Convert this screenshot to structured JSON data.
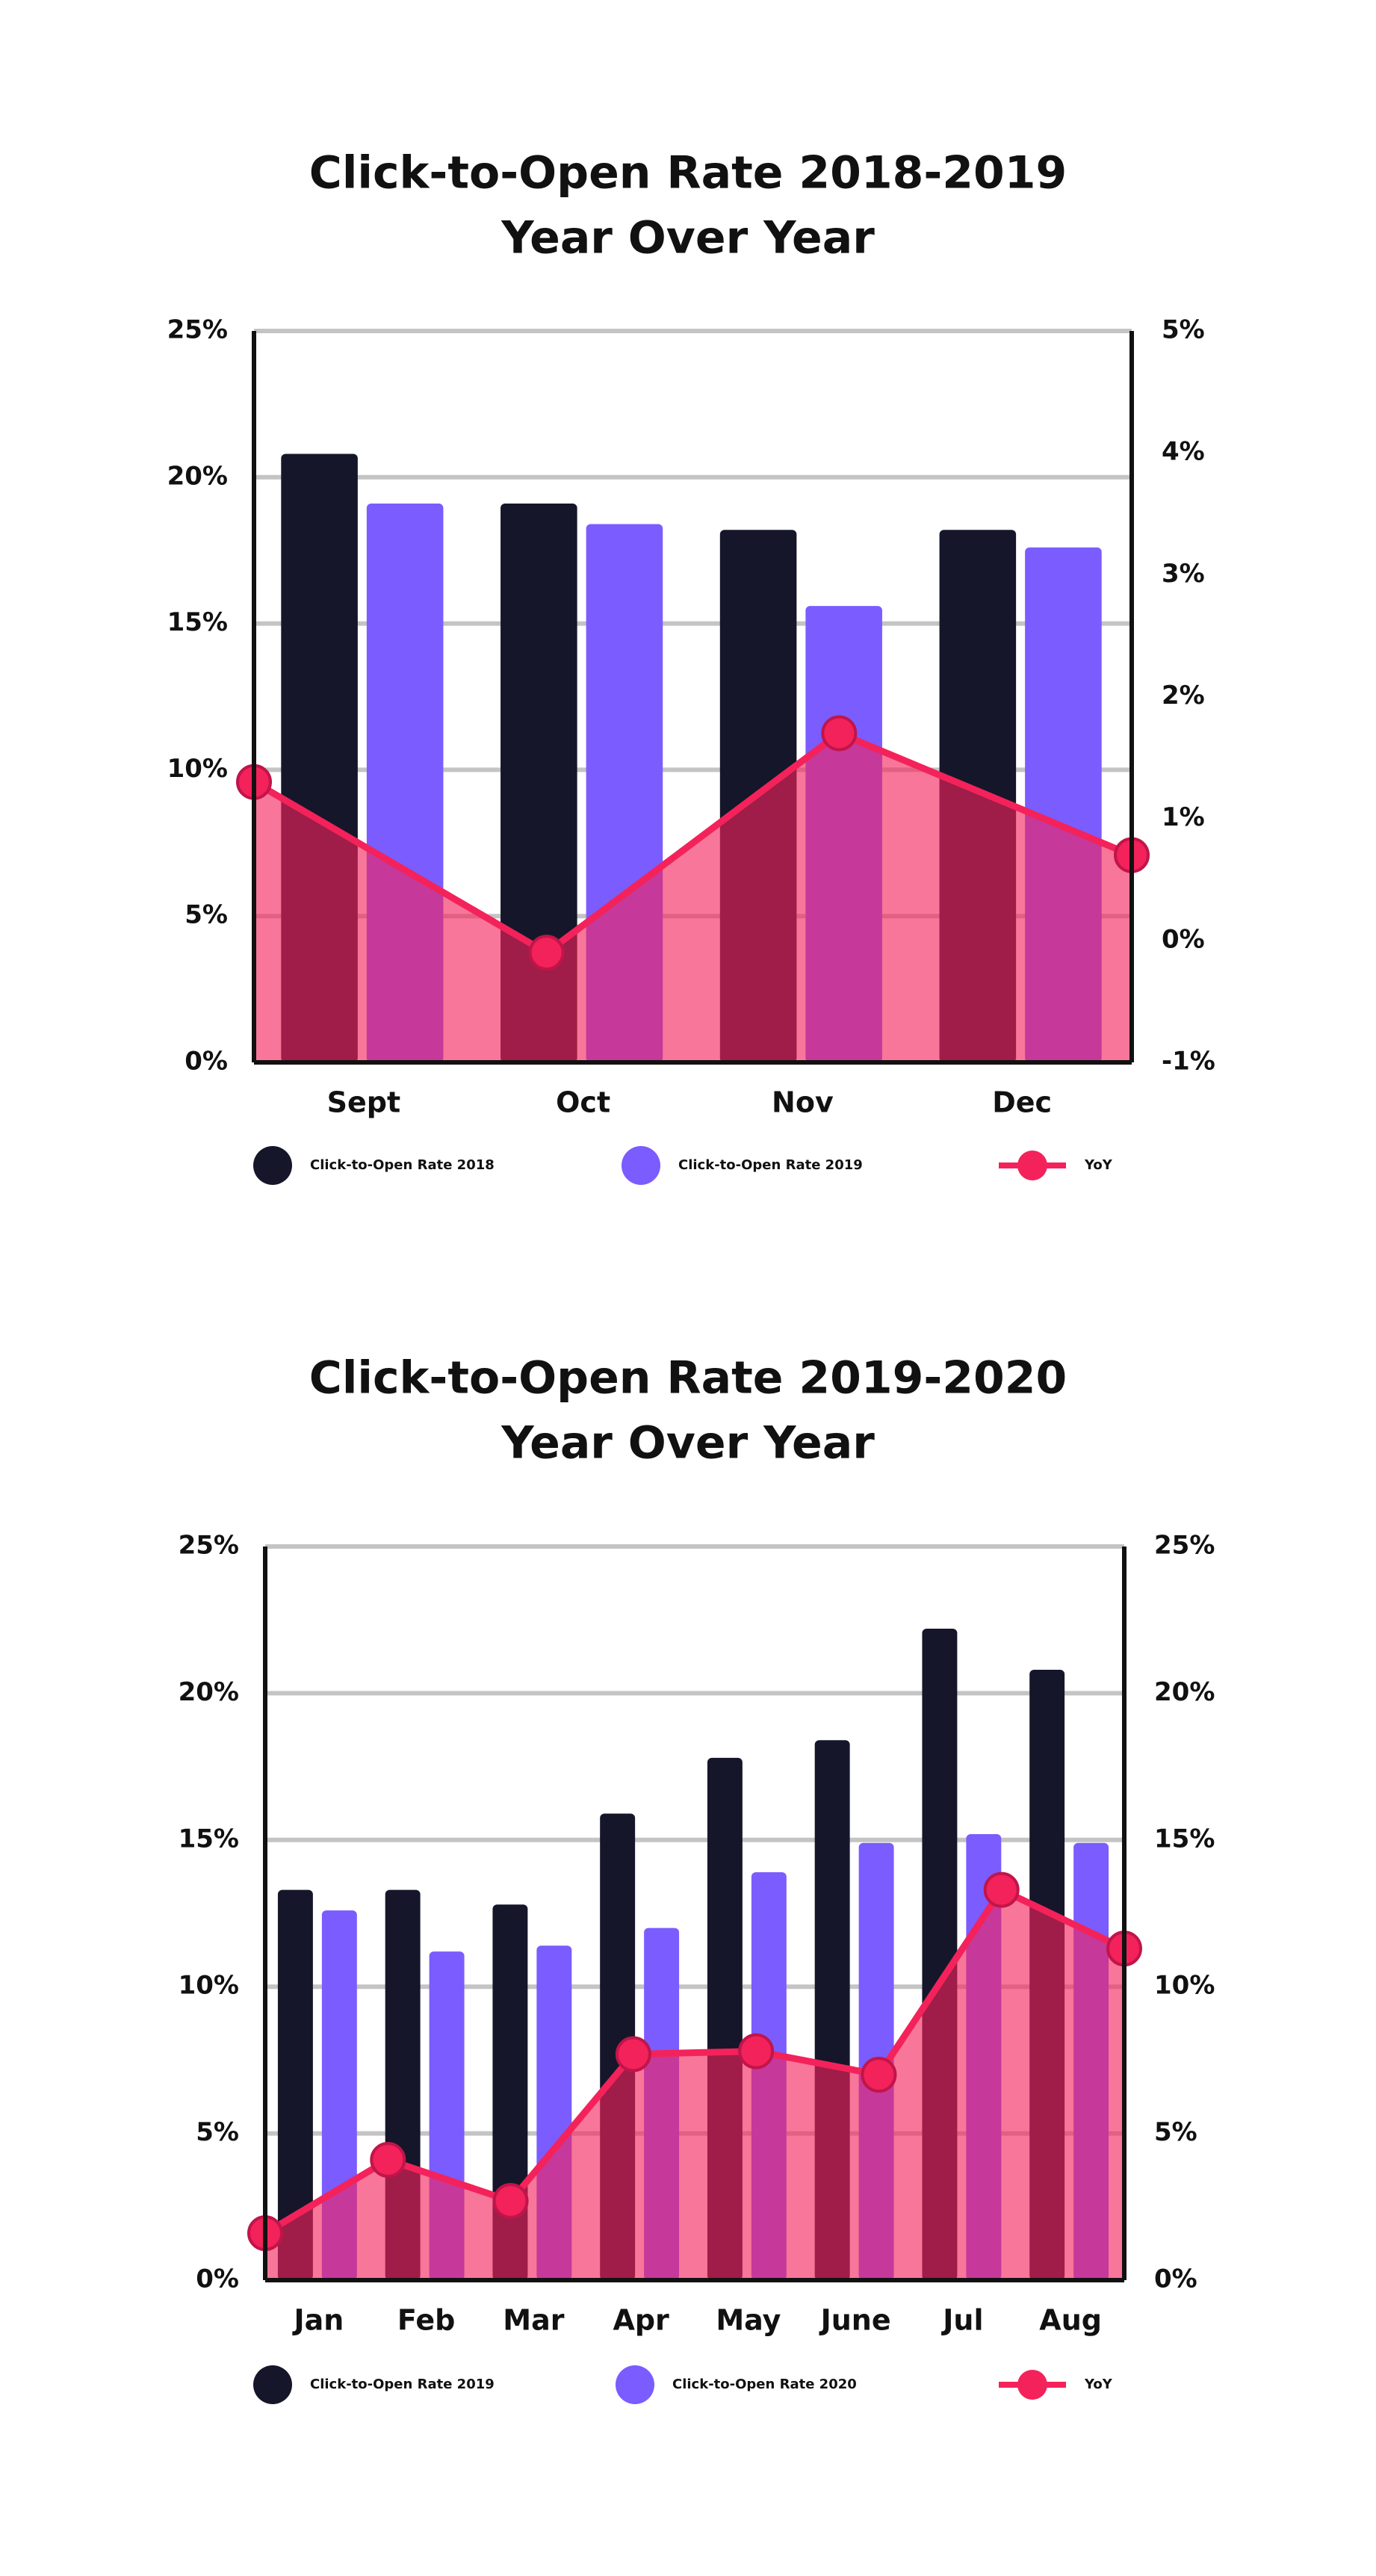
{
  "chart_data": [
    {
      "type": "bar",
      "title_lines": [
        "Click-to-Open Rate 2018-2019",
        "Year Over Year"
      ],
      "categories": [
        "Sept",
        "Oct",
        "Nov",
        "Dec"
      ],
      "ylim": [
        0,
        25
      ],
      "y_ticks": [
        "0%",
        "5%",
        "10%",
        "15%",
        "20%",
        "25%"
      ],
      "y2lim": [
        -1,
        5
      ],
      "y2_ticks": [
        "-1%",
        "0%",
        "1%",
        "2%",
        "3%",
        "4%",
        "5%"
      ],
      "ylabel": "",
      "y2label": "",
      "series": [
        {
          "kind": "bar",
          "values": [
            20.8,
            19.1,
            18.2,
            18.2
          ],
          "color": "#15162a"
        },
        {
          "kind": "bar",
          "values": [
            19.1,
            18.4,
            15.6,
            17.6
          ],
          "color": "#7b5cff"
        },
        {
          "kind": "area-line",
          "values": [
            1.3,
            -0.1,
            1.7,
            0.7
          ],
          "color": "#f4225a",
          "axis": "right"
        }
      ],
      "legend": [
        "Click-to-Open Rate 2018",
        "Click-to-Open Rate 2019",
        "YoY"
      ],
      "legend_position": "bottom",
      "grid": true
    },
    {
      "type": "bar",
      "title_lines": [
        "Click-to-Open Rate 2019-2020",
        "Year Over Year"
      ],
      "categories": [
        "Jan",
        "Feb",
        "Mar",
        "Apr",
        "May",
        "June",
        "Jul",
        "Aug"
      ],
      "ylim": [
        0,
        25
      ],
      "y_ticks": [
        "0%",
        "5%",
        "10%",
        "15%",
        "20%",
        "25%"
      ],
      "y2lim": [
        0,
        25
      ],
      "y2_ticks": [
        "0%",
        "5%",
        "10%",
        "15%",
        "20%",
        "25%"
      ],
      "ylabel": "",
      "y2label": "",
      "series": [
        {
          "kind": "bar",
          "values": [
            13.3,
            13.3,
            12.8,
            15.9,
            17.8,
            18.4,
            22.2,
            20.8
          ],
          "color": "#15162a"
        },
        {
          "kind": "bar",
          "values": [
            12.6,
            11.2,
            11.4,
            12.0,
            13.9,
            14.9,
            15.2,
            14.9
          ],
          "color": "#7b5cff"
        },
        {
          "kind": "area-line",
          "values": [
            1.6,
            4.1,
            2.7,
            7.7,
            7.8,
            7.0,
            13.3,
            11.3
          ],
          "color": "#f4225a",
          "axis": "right"
        }
      ],
      "legend": [
        "Click-to-Open Rate 2019",
        "Click-to-Open Rate 2020",
        "YoY"
      ],
      "legend_position": "bottom",
      "grid": true
    }
  ]
}
